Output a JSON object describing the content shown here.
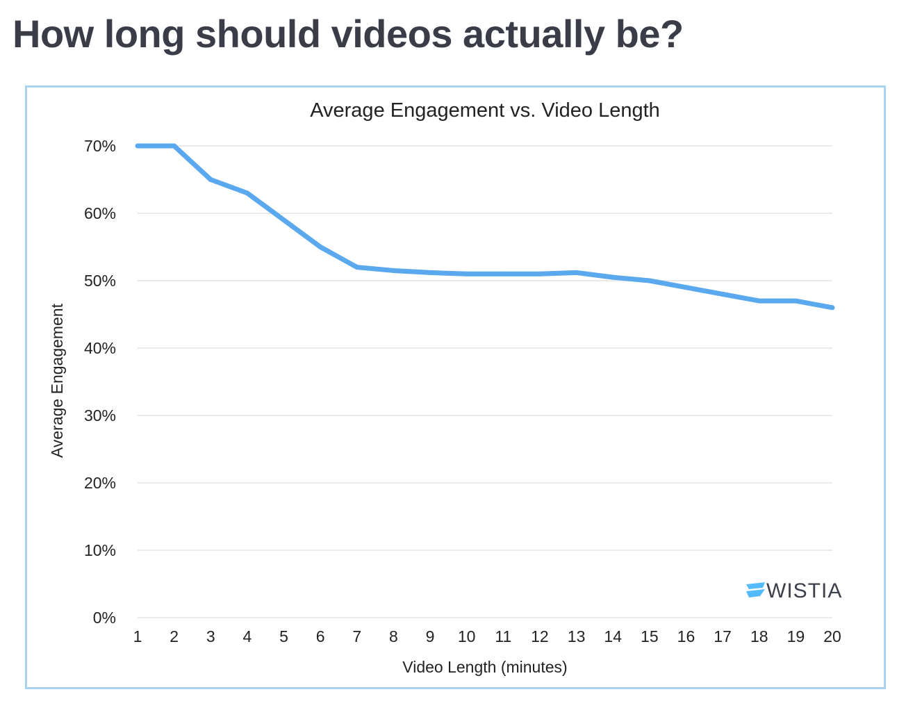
{
  "page": {
    "title": "How long should videos actually be?"
  },
  "brand": {
    "logo_text": "WISTIA",
    "logo_color": "#54bbff"
  },
  "colors": {
    "line": "#5aa8ee",
    "grid": "#e3e3e3",
    "frame": "#a9d3ef"
  },
  "chart_data": {
    "type": "line",
    "title": "Average Engagement vs. Video Length",
    "xlabel": "Video Length (minutes)",
    "ylabel": "Average Engagement",
    "x": [
      1,
      2,
      3,
      4,
      5,
      6,
      7,
      8,
      9,
      10,
      11,
      12,
      13,
      14,
      15,
      16,
      17,
      18,
      19,
      20
    ],
    "series": [
      {
        "name": "Average Engagement",
        "values": [
          70,
          70,
          65,
          63,
          59,
          55,
          52,
          51.5,
          51.2,
          51,
          51,
          51,
          51.2,
          50.5,
          50,
          49,
          48,
          47,
          47,
          46
        ]
      }
    ],
    "ylim": [
      0,
      70
    ],
    "yticks": [
      0,
      10,
      20,
      30,
      40,
      50,
      60,
      70
    ],
    "ytick_labels": [
      "0%",
      "10%",
      "20%",
      "30%",
      "40%",
      "50%",
      "60%",
      "70%"
    ],
    "xtick_labels": [
      "1",
      "2",
      "3",
      "4",
      "5",
      "6",
      "7",
      "8",
      "9",
      "10",
      "11",
      "12",
      "13",
      "14",
      "15",
      "16",
      "17",
      "18",
      "19",
      "20"
    ],
    "grid": true,
    "legend": "none"
  }
}
